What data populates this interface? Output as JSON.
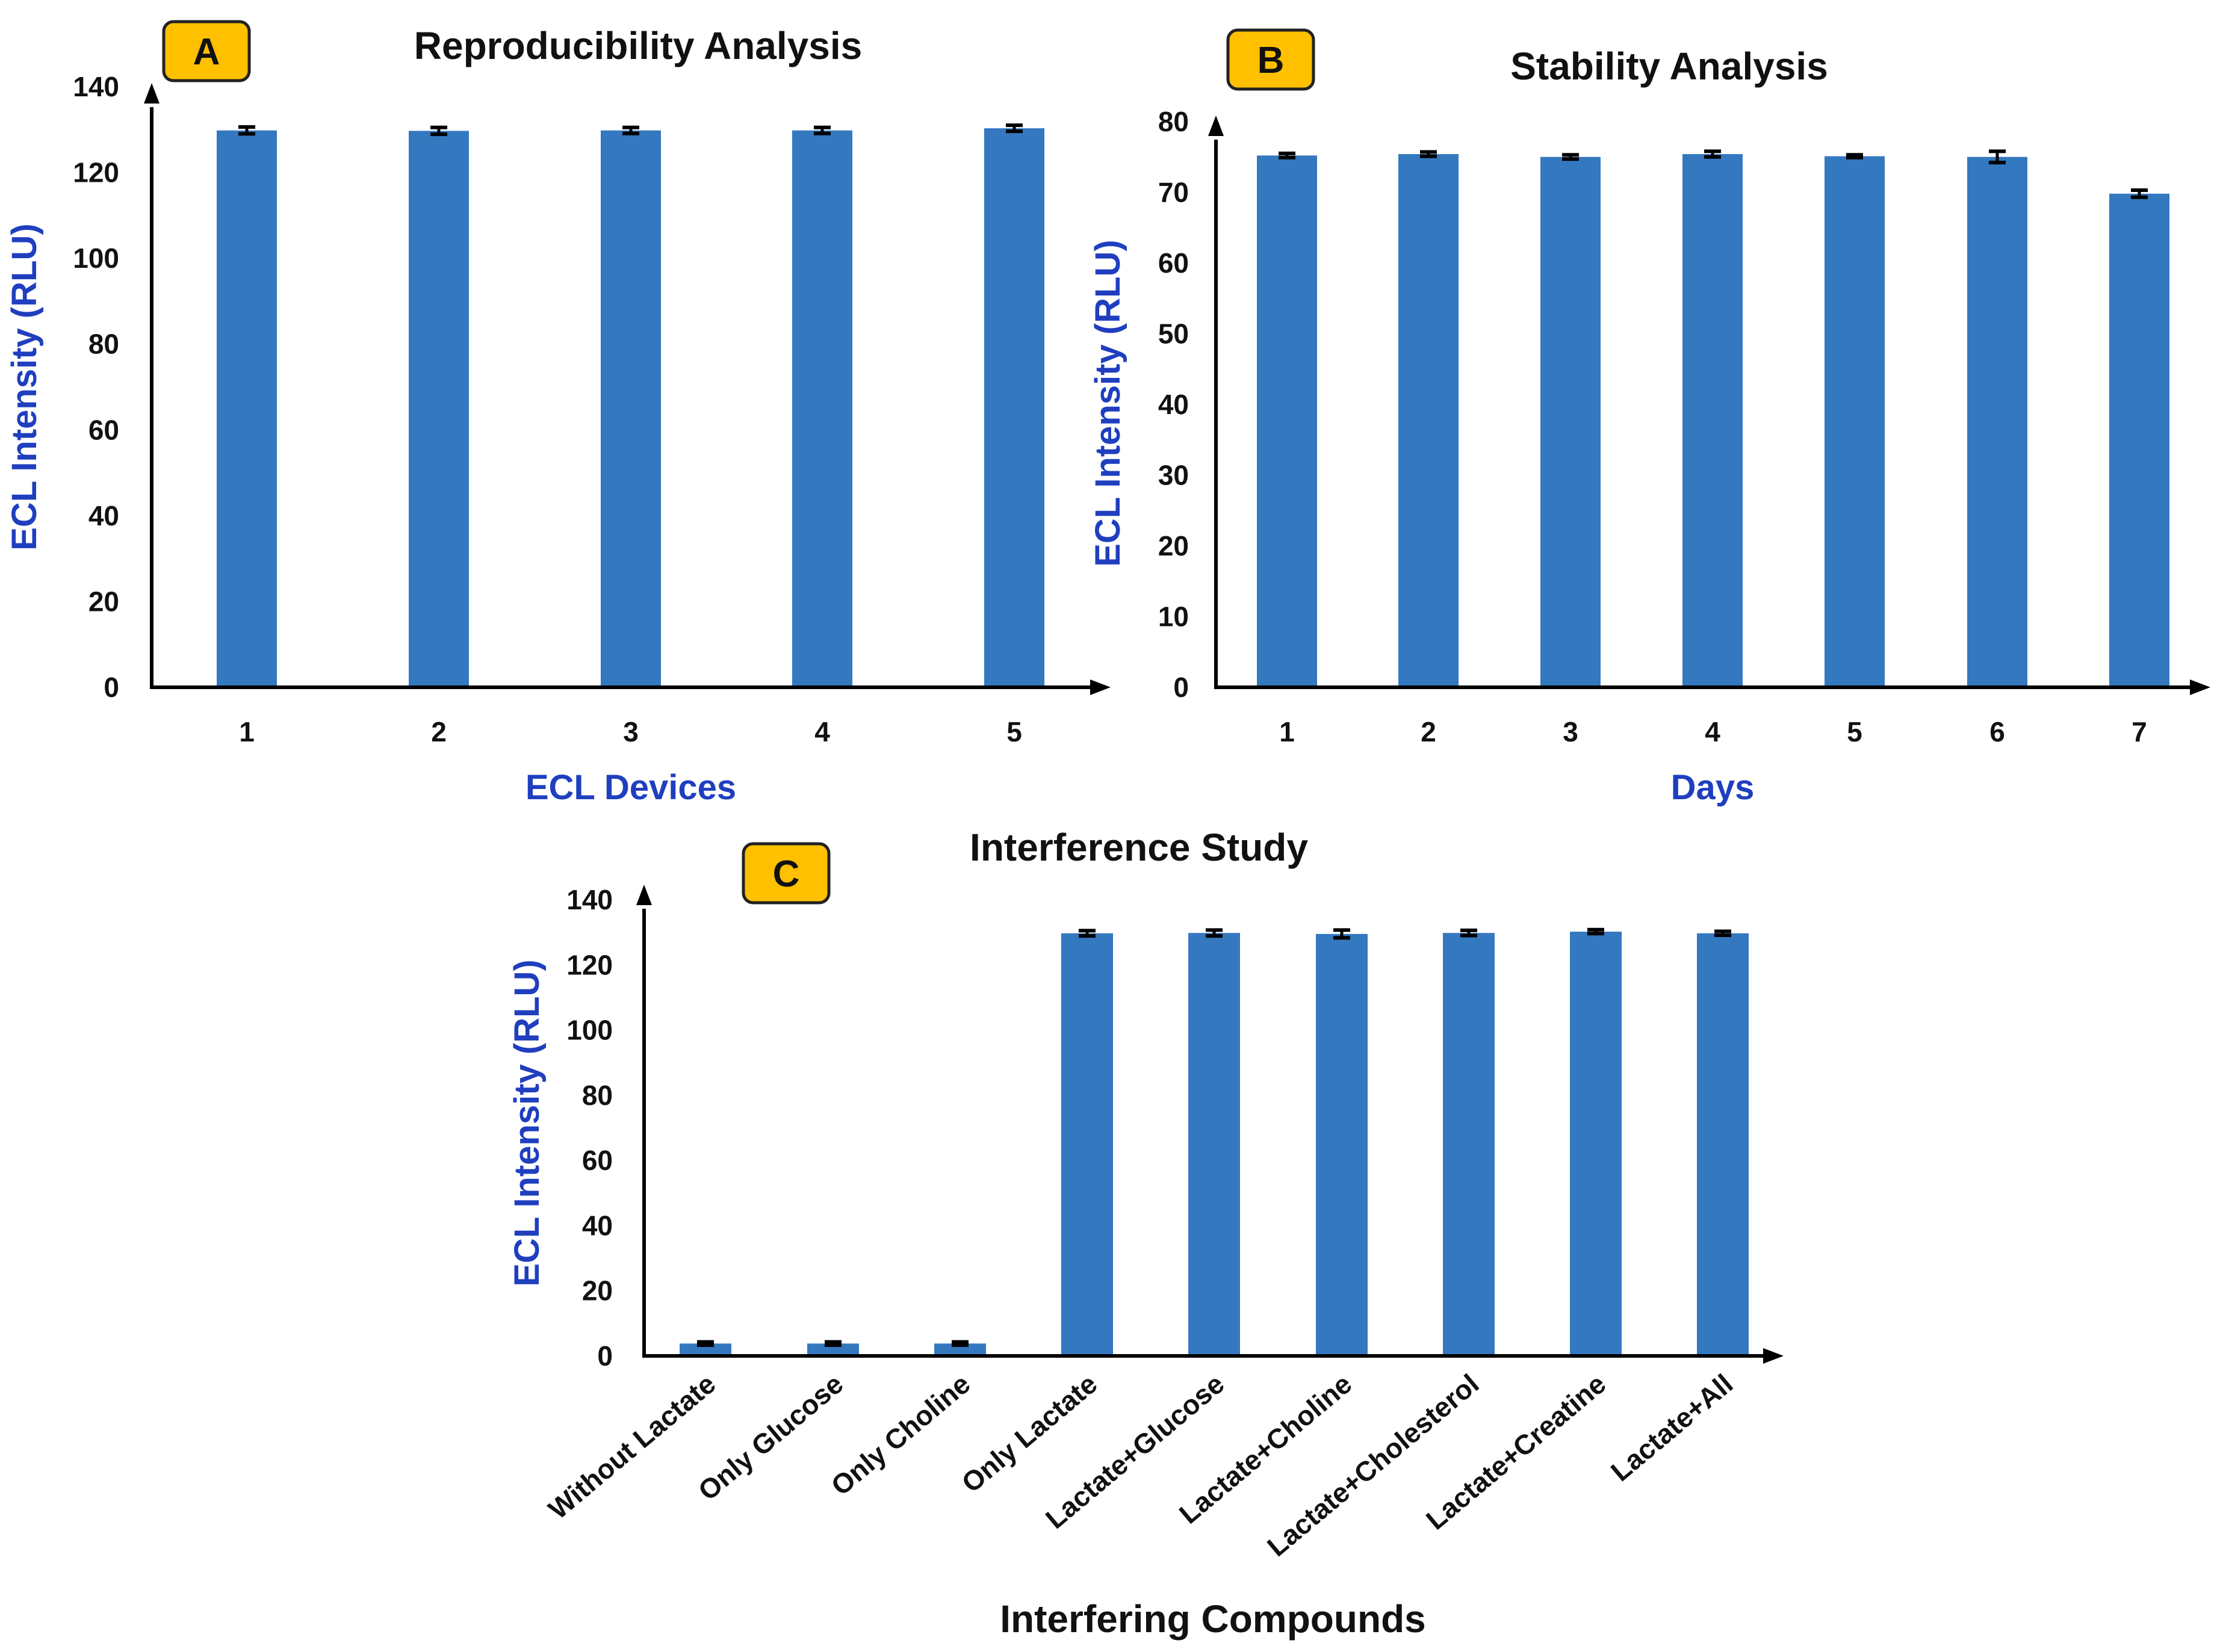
{
  "colors": {
    "bar": "#3478c0",
    "axis": "#000000",
    "error_bar": "#000000",
    "axis_title": "#1f3fbf",
    "badge_fill": "#ffc000",
    "badge_stroke": "#222222"
  },
  "chart_data": [
    {
      "panel": "A",
      "type": "bar",
      "title": "Reproducibility Analysis",
      "xlabel": "ECL Devices",
      "ylabel": "ECL Intensity (RLU)",
      "ylim": [
        0,
        140
      ],
      "yticks": [
        0,
        20,
        40,
        60,
        80,
        100,
        120,
        140
      ],
      "categories": [
        "1",
        "2",
        "3",
        "4",
        "5"
      ],
      "values": [
        129.8,
        129.7,
        129.8,
        129.8,
        130.3
      ],
      "errors": [
        0.8,
        0.8,
        0.7,
        0.7,
        0.7
      ],
      "grid": false
    },
    {
      "panel": "B",
      "type": "bar",
      "title": "Stability Analysis",
      "xlabel": "Days",
      "ylabel": "ECL Intensity (RLU)",
      "ylim": [
        0,
        80
      ],
      "yticks": [
        0,
        10,
        20,
        30,
        40,
        50,
        60,
        70,
        80
      ],
      "categories": [
        "1",
        "2",
        "3",
        "4",
        "5",
        "6",
        "7"
      ],
      "values": [
        75.2,
        75.4,
        75.0,
        75.4,
        75.1,
        75.0,
        69.8
      ],
      "errors": [
        0.3,
        0.3,
        0.3,
        0.4,
        0.2,
        0.8,
        0.5
      ],
      "grid": false
    },
    {
      "panel": "C",
      "type": "bar",
      "title": "Interference Study",
      "xlabel": "Interfering Compounds",
      "ylabel": "ECL Intensity (RLU)",
      "ylim": [
        0,
        140
      ],
      "yticks": [
        0,
        20,
        40,
        60,
        80,
        100,
        120,
        140
      ],
      "categories": [
        "Without Lactate",
        "Only Glucose",
        "Only Choline",
        "Only Lactate",
        "Lactate+Glucose",
        "Lactate+Choline",
        "Lactate+Cholesterol",
        "Lactate+Creatine",
        "Lactate+All"
      ],
      "values": [
        3.8,
        3.8,
        3.8,
        129.7,
        129.8,
        129.5,
        129.8,
        130.2,
        129.7
      ],
      "errors": [
        0.5,
        0.5,
        0.5,
        0.8,
        0.9,
        1.2,
        0.8,
        0.6,
        0.6
      ],
      "grid": false
    }
  ]
}
